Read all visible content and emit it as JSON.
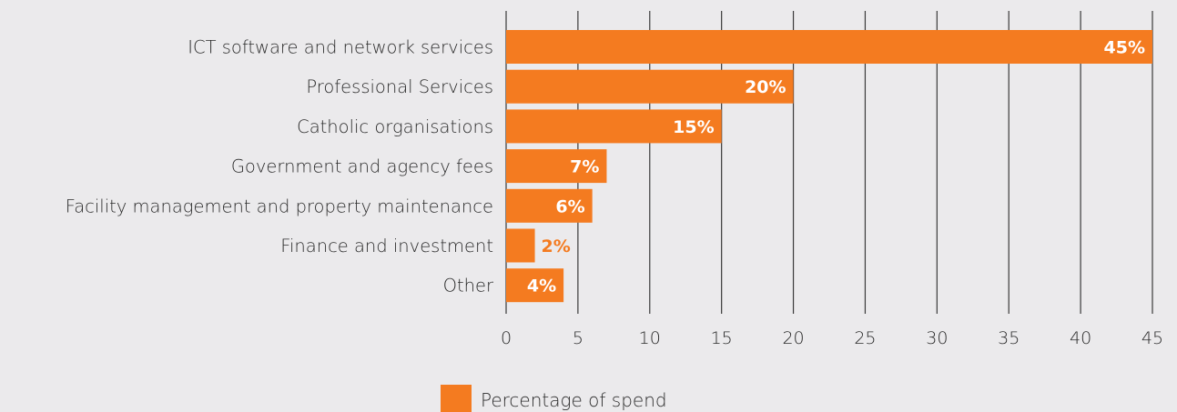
{
  "chart_data": {
    "type": "bar",
    "orientation": "horizontal",
    "categories": [
      "ICT software and network services",
      "Professional Services",
      "Catholic organisations",
      "Government and agency fees",
      "Facility management and property maintenance",
      "Finance and investment",
      "Other"
    ],
    "series": [
      {
        "name": "Percentage of spend",
        "values": [
          45,
          20,
          15,
          7,
          6,
          2,
          4
        ],
        "color": "#f47b20"
      }
    ],
    "data_labels": [
      "45%",
      "20%",
      "15%",
      "7%",
      "6%",
      "2%",
      "4%"
    ],
    "xlim": [
      0,
      45
    ],
    "xticks": [
      0,
      5,
      10,
      15,
      20,
      25,
      30,
      35,
      40,
      45
    ],
    "grid": "vertical",
    "legend_position": "bottom"
  }
}
